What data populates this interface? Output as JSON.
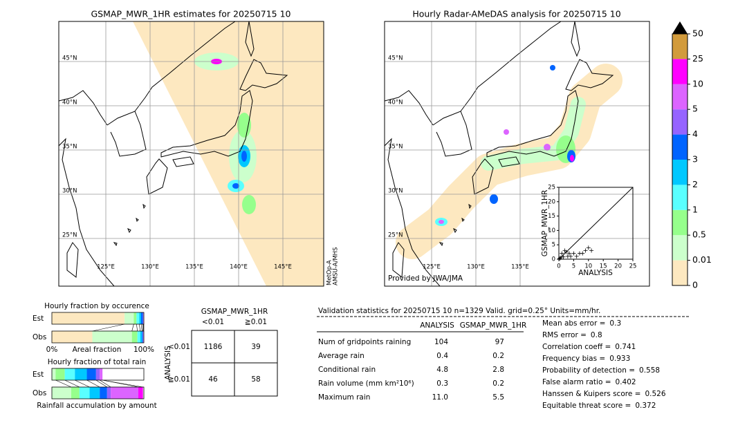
{
  "maps": [
    {
      "title": "GSMAP_MWR_1HR estimates for 20250715 10",
      "lon_ticks": [
        {
          "value": 125,
          "label": "125°E"
        },
        {
          "value": 130,
          "label": "130°E"
        },
        {
          "value": 135,
          "label": "135°E"
        },
        {
          "value": 140,
          "label": "140°E"
        },
        {
          "value": 145,
          "label": "145°E"
        }
      ],
      "lat_ticks": [
        {
          "value": 25,
          "label": "25°N"
        },
        {
          "value": 30,
          "label": "30°N"
        },
        {
          "value": 35,
          "label": "35°N"
        },
        {
          "value": 40,
          "label": "40°N"
        },
        {
          "value": 45,
          "label": "45°N"
        }
      ],
      "satellite": [
        "MetOp-A",
        "AMSU-A/MHS"
      ]
    },
    {
      "title": "Hourly Radar-AMeDAS analysis for 20250715 10",
      "lon_ticks": [
        {
          "value": 125,
          "label": "125°E"
        },
        {
          "value": 130,
          "label": "130°E"
        },
        {
          "value": 135,
          "label": "135°E"
        }
      ],
      "lat_ticks": [
        {
          "value": 25,
          "label": "25°N"
        },
        {
          "value": 30,
          "label": "30°N"
        },
        {
          "value": 35,
          "label": "35°N"
        },
        {
          "value": 40,
          "label": "40°N"
        },
        {
          "value": 45,
          "label": "45°N"
        }
      ],
      "credit": "Provided by JWA/JMA"
    }
  ],
  "chart_data": [
    {
      "type": "scatter",
      "xlabel": "ANALYSIS",
      "ylabel": "GSMAP_MWR_1HR",
      "xlim": [
        0,
        25
      ],
      "ylim": [
        0,
        25
      ],
      "xticks": [
        0,
        5,
        10,
        15,
        20,
        25
      ],
      "yticks": [
        0,
        5,
        10,
        15,
        20,
        25
      ],
      "x": [
        0.5,
        1,
        2,
        3,
        1.5,
        2.5,
        4,
        5,
        6,
        7,
        8,
        9,
        10,
        11,
        3.5,
        0.3
      ],
      "y": [
        0.5,
        2,
        3,
        1,
        0.8,
        2.5,
        1,
        2,
        1,
        2,
        2,
        3,
        4,
        3,
        2,
        0.2
      ]
    },
    {
      "type": "colorbar",
      "levels": [
        0,
        0.01,
        0.5,
        1,
        2,
        3,
        4,
        5,
        10,
        25,
        50
      ],
      "colors": [
        "#fde8c0",
        "#ccffcc",
        "#96ff8c",
        "#5affff",
        "#00c8ff",
        "#0064ff",
        "#9664ff",
        "#dc64ff",
        "#ff00ff",
        "#d29b3c"
      ]
    },
    {
      "type": "stacked-bar",
      "title": "Hourly fraction by occurence",
      "categories": [
        "Est",
        "Obs"
      ],
      "xlim": [
        0,
        1
      ],
      "xticks": [
        {
          "value": 0,
          "label": "0%"
        },
        {
          "value": 1,
          "label": "100%"
        }
      ],
      "xlabel": "Areal fraction",
      "series": [
        {
          "color": "#fde8c0",
          "values": [
            0.79,
            0.44
          ]
        },
        {
          "color": "#ccffcc",
          "values": [
            0.1,
            0.43
          ]
        },
        {
          "color": "#96ff8c",
          "values": [
            0.03,
            0.06
          ]
        },
        {
          "color": "#5affff",
          "values": [
            0.03,
            0.03
          ]
        },
        {
          "color": "#00c8ff",
          "values": [
            0.02,
            0.02
          ]
        },
        {
          "color": "#0064ff",
          "values": [
            0.02,
            0.01
          ]
        },
        {
          "color": "#9664ff",
          "values": [
            0.005,
            0.005
          ]
        },
        {
          "color": "#dc64ff",
          "values": [
            0.005,
            0.005
          ]
        }
      ]
    },
    {
      "type": "stacked-bar",
      "title": "Hourly fraction of total rain",
      "categories": [
        "Est",
        "Obs"
      ],
      "xlim": [
        0,
        1
      ],
      "xlabel": "Rainfall accumulation by amount",
      "series": [
        {
          "color": "#ccffcc",
          "values": [
            0.04,
            0.21
          ]
        },
        {
          "color": "#96ff8c",
          "values": [
            0.1,
            0.09
          ]
        },
        {
          "color": "#5affff",
          "values": [
            0.11,
            0.11
          ]
        },
        {
          "color": "#00c8ff",
          "values": [
            0.13,
            0.11
          ]
        },
        {
          "color": "#0064ff",
          "values": [
            0.1,
            0.08
          ]
        },
        {
          "color": "#9664ff",
          "values": [
            0.04,
            0.04
          ]
        },
        {
          "color": "#dc64ff",
          "values": [
            0.03,
            0.3
          ]
        },
        {
          "color": "#ff00ff",
          "values": [
            0,
            0.05
          ]
        }
      ]
    }
  ],
  "contingency": {
    "title": "GSMAP_MWR_1HR",
    "columns": [
      "<0.01",
      "≧0.01"
    ],
    "side": "ANALYSIS",
    "rows": [
      "<0.01",
      "≧0.01"
    ],
    "cells": [
      [
        1186,
        39
      ],
      [
        46,
        58
      ]
    ]
  },
  "stats": {
    "header": "Validation statistics for 20250715 10  n=1329 Valid. grid=0.25° Units=mm/hr.",
    "columns": [
      "ANALYSIS",
      "GSMAP_MWR_1HR"
    ],
    "rows": [
      [
        "Num of gridpoints raining",
        "104",
        "97"
      ],
      [
        "Average rain",
        "0.4",
        "0.2"
      ],
      [
        "Conditional rain",
        "4.8",
        "2.8"
      ],
      [
        "Rain volume (mm km²10⁶)",
        "0.3",
        "0.2"
      ],
      [
        "Maximum rain",
        "11.0",
        "5.5"
      ]
    ],
    "scores": [
      [
        "Mean abs error =",
        "0.3"
      ],
      [
        "RMS error =",
        "0.8"
      ],
      [
        "Correlation coeff =",
        "0.741"
      ],
      [
        "Frequency bias =",
        "0.933"
      ],
      [
        "Probability of detection =",
        "0.558"
      ],
      [
        "False alarm ratio =",
        "0.402"
      ],
      [
        "Hanssen & Kuipers score =",
        "0.526"
      ],
      [
        "Equitable threat score =",
        "0.372"
      ]
    ]
  }
}
